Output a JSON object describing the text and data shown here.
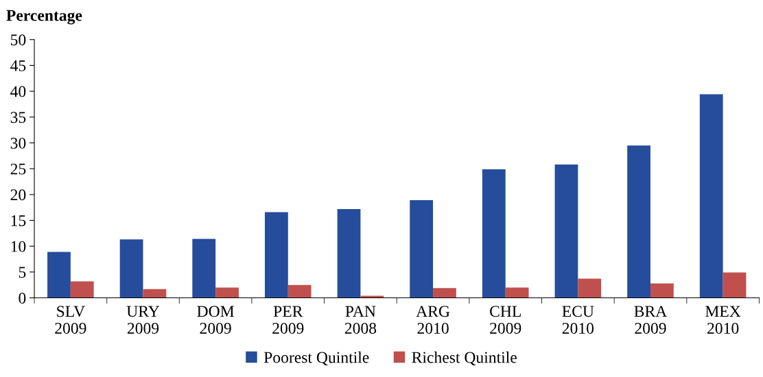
{
  "chart_data": {
    "type": "bar",
    "ylabel": "Percentage",
    "categories": [
      "SLV\n2009",
      "URY\n2009",
      "DOM\n2009",
      "PER\n2009",
      "PAN\n2008",
      "ARG\n2010",
      "CHL\n2009",
      "ECU\n2010",
      "BRA\n2009",
      "MEX\n2010"
    ],
    "series": [
      {
        "name": "Poorest Quintile",
        "color": "#264d9b",
        "values": [
          8.9,
          11.3,
          11.4,
          16.6,
          17.2,
          18.9,
          24.9,
          25.8,
          29.5,
          39.4
        ]
      },
      {
        "name": "Richest Quintile",
        "color": "#c0504d",
        "values": [
          3.2,
          1.7,
          2.0,
          2.5,
          0.4,
          1.9,
          2.0,
          3.7,
          2.8,
          4.9
        ]
      }
    ],
    "ylim": [
      0,
      50
    ],
    "yticks": [
      0,
      5,
      10,
      15,
      20,
      25,
      30,
      35,
      40,
      45,
      50
    ],
    "grid": false,
    "legend": "bottom"
  }
}
